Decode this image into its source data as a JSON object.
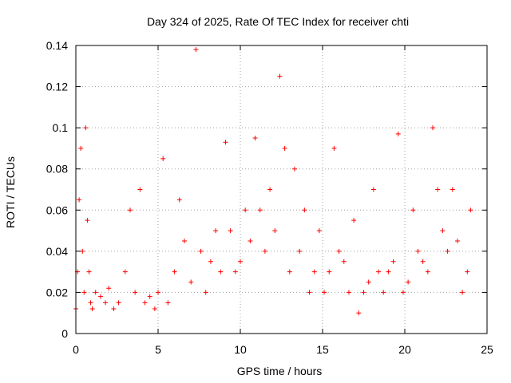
{
  "chart_data": {
    "type": "scatter",
    "title": "Day 324 of 2025, Rate Of TEC Index for receiver chti",
    "xlabel": "GPS time / hours",
    "ylabel": "ROTI / TECUs",
    "xlim": [
      0,
      25
    ],
    "ylim": [
      0,
      0.14
    ],
    "xticks": [
      0,
      5,
      10,
      15,
      20,
      25
    ],
    "yticks": [
      0,
      0.02,
      0.04,
      0.06,
      0.08,
      0.1,
      0.12,
      0.14
    ],
    "xtick_labels": [
      "0",
      "5",
      "10",
      "15",
      "20",
      "25"
    ],
    "ytick_labels": [
      "0",
      "0.02",
      "0.04",
      "0.06",
      "0.08",
      "0.1",
      "0.12",
      "0.14"
    ],
    "grid": true,
    "marker": "+",
    "color": "#ff0000",
    "series": [
      {
        "x": [
          0.0,
          0.1,
          0.2,
          0.3,
          0.4,
          0.5,
          0.6,
          0.7,
          0.8,
          0.9,
          1.0,
          1.2,
          1.5,
          1.8,
          2.0,
          2.3,
          2.6,
          3.0,
          3.3,
          3.6,
          3.9,
          4.2,
          4.5,
          4.8,
          5.0,
          5.3,
          5.6,
          6.0,
          6.3,
          6.6,
          7.0,
          7.3,
          7.6,
          7.9,
          8.2,
          8.5,
          8.8,
          9.1,
          9.4,
          9.7,
          10.0,
          10.3,
          10.6,
          10.9,
          11.2,
          11.5,
          11.8,
          12.1,
          12.4,
          12.7,
          13.0,
          13.3,
          13.6,
          13.9,
          14.2,
          14.5,
          14.8,
          15.1,
          15.4,
          15.7,
          16.0,
          16.3,
          16.6,
          16.9,
          17.2,
          17.5,
          17.8,
          18.1,
          18.4,
          18.7,
          19.0,
          19.3,
          19.6,
          19.9,
          20.2,
          20.5,
          20.8,
          21.1,
          21.4,
          21.7,
          22.0,
          22.3,
          22.6,
          22.9,
          23.2,
          23.5,
          23.8,
          24.0
        ],
        "y": [
          0.012,
          0.03,
          0.065,
          0.09,
          0.04,
          0.02,
          0.1,
          0.055,
          0.03,
          0.015,
          0.012,
          0.02,
          0.018,
          0.015,
          0.022,
          0.012,
          0.015,
          0.03,
          0.06,
          0.02,
          0.07,
          0.015,
          0.018,
          0.012,
          0.02,
          0.085,
          0.015,
          0.03,
          0.065,
          0.045,
          0.025,
          0.138,
          0.04,
          0.02,
          0.035,
          0.05,
          0.03,
          0.093,
          0.05,
          0.03,
          0.035,
          0.06,
          0.045,
          0.095,
          0.06,
          0.04,
          0.07,
          0.05,
          0.125,
          0.09,
          0.03,
          0.08,
          0.04,
          0.06,
          0.02,
          0.03,
          0.05,
          0.02,
          0.03,
          0.09,
          0.04,
          0.035,
          0.02,
          0.055,
          0.01,
          0.02,
          0.025,
          0.07,
          0.03,
          0.02,
          0.03,
          0.035,
          0.097,
          0.02,
          0.025,
          0.06,
          0.04,
          0.035,
          0.03,
          0.1,
          0.07,
          0.05,
          0.04,
          0.07,
          0.045,
          0.02,
          0.03,
          0.06
        ]
      }
    ]
  }
}
